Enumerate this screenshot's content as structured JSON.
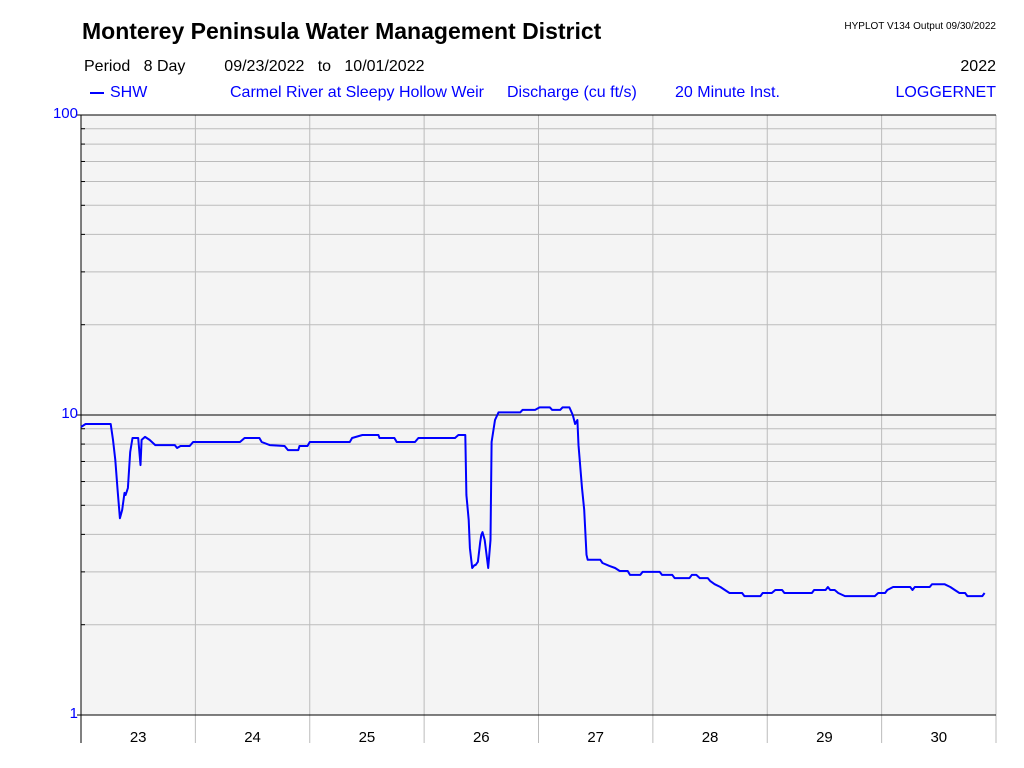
{
  "header": {
    "title": "Monterey Peninsula Water Management District",
    "program": "HYPLOT V134  Output 09/30/2022",
    "period_label": "Period",
    "period_value": "8 Day",
    "start_date": "09/23/2022",
    "to_label": "to",
    "end_date": "10/01/2022",
    "year": "2022"
  },
  "legend": {
    "series_code": "SHW",
    "site": "Carmel River at Sleepy Hollow Weir",
    "parameter": "Discharge (cu ft/s)",
    "interval": "20 Minute Inst.",
    "source": "LOGGERNET"
  },
  "colors": {
    "series": "#0000ff",
    "plot_bg": "#f4f4f4",
    "grid": "#bbbbbb",
    "axis_labels": "#0000ff"
  },
  "chart_data": {
    "type": "line",
    "title": "Monterey Peninsula Water Management District",
    "xlabel": "",
    "ylabel": "",
    "y_scale": "log",
    "ylim": [
      1,
      100
    ],
    "y_ticks": [
      "1",
      "10",
      "100"
    ],
    "xlim": [
      23,
      31
    ],
    "x_ticks": [
      "23",
      "24",
      "25",
      "26",
      "27",
      "28",
      "29",
      "30"
    ],
    "grid": true,
    "legend": "top-left",
    "series": [
      {
        "name": "SHW",
        "x": [
          23.0,
          23.04,
          23.26,
          23.28,
          23.3,
          23.32,
          23.34,
          23.36,
          23.38,
          23.39,
          23.41,
          23.43,
          23.45,
          23.5,
          23.52,
          23.53,
          23.56,
          23.6,
          23.65,
          23.82,
          23.84,
          23.87,
          23.95,
          23.98,
          24.39,
          24.43,
          24.56,
          24.58,
          24.65,
          24.78,
          24.81,
          24.9,
          24.91,
          24.98,
          25.0,
          25.35,
          25.37,
          25.46,
          25.6,
          25.61,
          25.74,
          25.76,
          25.92,
          25.95,
          26.27,
          26.3,
          26.36,
          26.37,
          26.39,
          26.4,
          26.42,
          26.44,
          26.45,
          26.47,
          26.49,
          26.5,
          26.51,
          26.53,
          26.56,
          26.58,
          26.59,
          26.62,
          26.65,
          26.84,
          26.86,
          26.97,
          27.01,
          27.1,
          27.12,
          27.19,
          27.21,
          27.27,
          27.3,
          27.32,
          27.34,
          27.35,
          27.38,
          27.4,
          27.42,
          27.43,
          27.54,
          27.56,
          27.62,
          27.67,
          27.71,
          27.78,
          27.8,
          27.89,
          27.91,
          28.06,
          28.08,
          28.17,
          28.19,
          28.32,
          28.34,
          28.38,
          28.41,
          28.48,
          28.5,
          28.54,
          28.59,
          28.63,
          28.67,
          28.78,
          28.8,
          28.94,
          28.96,
          29.04,
          29.07,
          29.13,
          29.15,
          29.39,
          29.41,
          29.51,
          29.53,
          29.55,
          29.59,
          29.62,
          29.68,
          29.94,
          29.97,
          30.03,
          30.05,
          30.1,
          30.25,
          30.27,
          30.29,
          30.42,
          30.44,
          30.55,
          30.6,
          30.64,
          30.68,
          30.73,
          30.75,
          30.88,
          30.9
        ],
        "y": [
          9.12,
          9.33,
          9.33,
          8.26,
          7.08,
          5.62,
          4.53,
          4.83,
          5.5,
          5.41,
          5.71,
          7.53,
          8.38,
          8.38,
          6.81,
          8.26,
          8.45,
          8.26,
          7.94,
          7.94,
          7.76,
          7.88,
          7.88,
          8.13,
          8.13,
          8.38,
          8.38,
          8.13,
          7.94,
          7.88,
          7.64,
          7.64,
          7.88,
          7.88,
          8.13,
          8.13,
          8.38,
          8.58,
          8.58,
          8.38,
          8.38,
          8.13,
          8.13,
          8.38,
          8.38,
          8.58,
          8.58,
          5.41,
          4.47,
          3.6,
          3.09,
          3.16,
          3.16,
          3.24,
          3.77,
          3.98,
          4.07,
          3.83,
          3.09,
          3.83,
          8.13,
          9.62,
          10.2,
          10.2,
          10.4,
          10.4,
          10.6,
          10.6,
          10.4,
          10.4,
          10.6,
          10.6,
          10.0,
          9.33,
          9.62,
          7.94,
          5.71,
          4.83,
          3.42,
          3.29,
          3.29,
          3.21,
          3.14,
          3.09,
          3.02,
          3.02,
          2.93,
          2.93,
          3.0,
          3.0,
          2.93,
          2.93,
          2.86,
          2.86,
          2.93,
          2.93,
          2.86,
          2.86,
          2.8,
          2.73,
          2.67,
          2.61,
          2.55,
          2.55,
          2.49,
          2.49,
          2.55,
          2.55,
          2.61,
          2.61,
          2.55,
          2.55,
          2.61,
          2.61,
          2.67,
          2.61,
          2.61,
          2.55,
          2.49,
          2.49,
          2.55,
          2.55,
          2.61,
          2.67,
          2.67,
          2.61,
          2.67,
          2.67,
          2.73,
          2.73,
          2.67,
          2.61,
          2.55,
          2.55,
          2.49,
          2.49,
          2.55
        ]
      }
    ]
  }
}
